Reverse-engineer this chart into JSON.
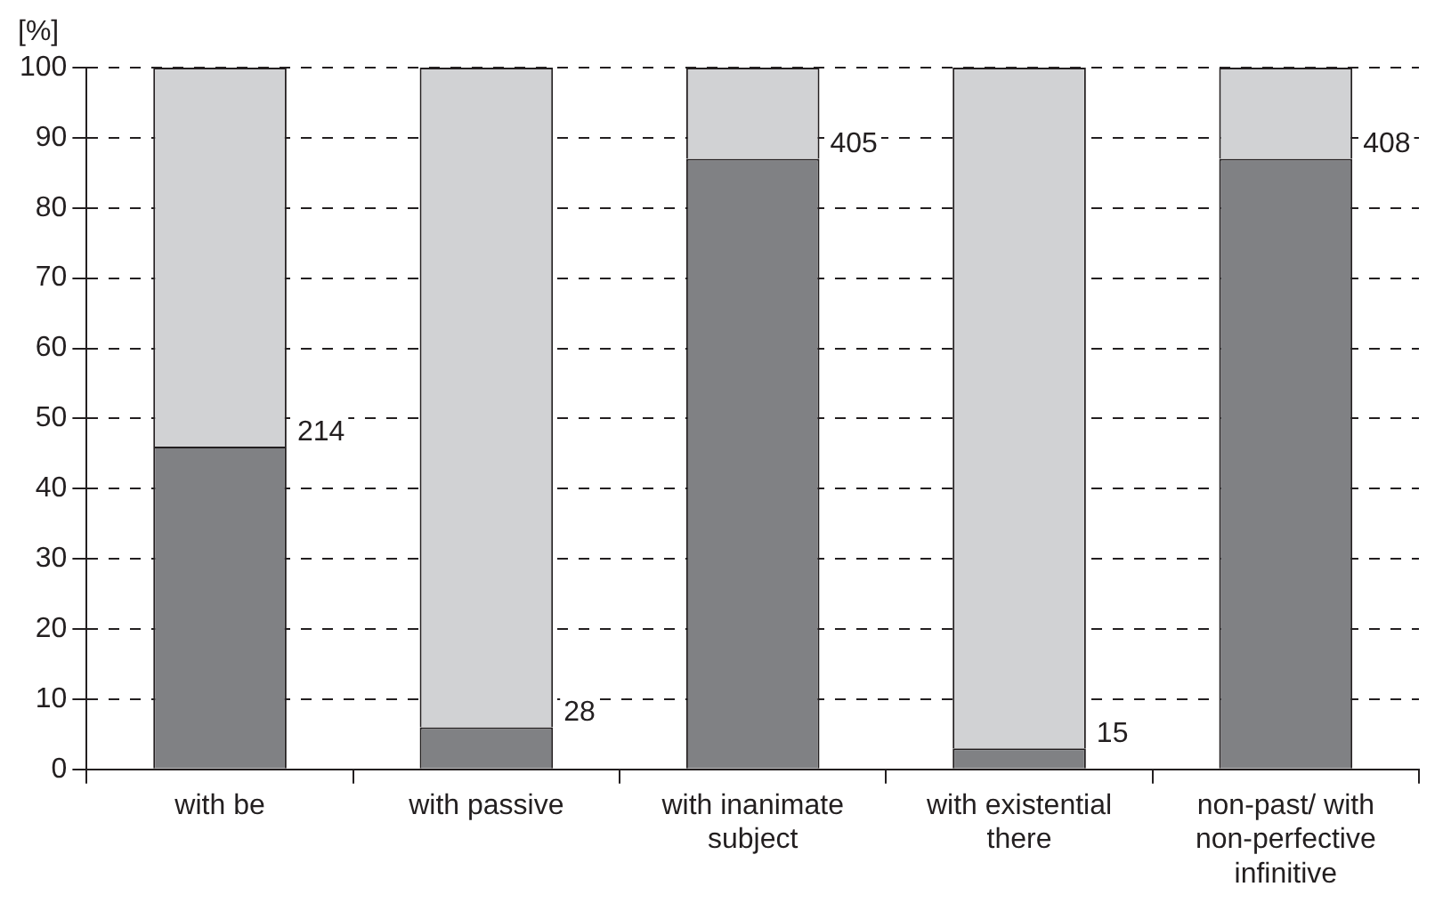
{
  "chart_data": {
    "type": "bar",
    "stacked": true,
    "ylabel": "[%]",
    "categories": [
      "with be",
      "with passive",
      "with inanimate subject",
      "with existential there",
      "non-past/ with non-perfective infinitive"
    ],
    "series": [
      {
        "color": "#808184",
        "values": [
          46,
          6,
          87,
          3,
          87
        ]
      },
      {
        "color": "#d1d2d4",
        "values": [
          54,
          94,
          13,
          97,
          13
        ]
      }
    ],
    "ylim": [
      0,
      100
    ],
    "yticks": [
      0,
      10,
      20,
      30,
      40,
      50,
      60,
      70,
      80,
      90,
      100
    ],
    "grid": "y",
    "legend": false,
    "annotations": [
      {
        "text": "214",
        "x": "with be",
        "y": 46
      },
      {
        "text": "28",
        "x": "with passive",
        "y": 6
      },
      {
        "text": "405",
        "x": "with inanimate subject",
        "y": 87
      },
      {
        "text": "15",
        "x": "with existential there",
        "y": 3
      },
      {
        "text": "408",
        "x": "non-past/ with non-perfective infinitive",
        "y": 87
      }
    ]
  }
}
